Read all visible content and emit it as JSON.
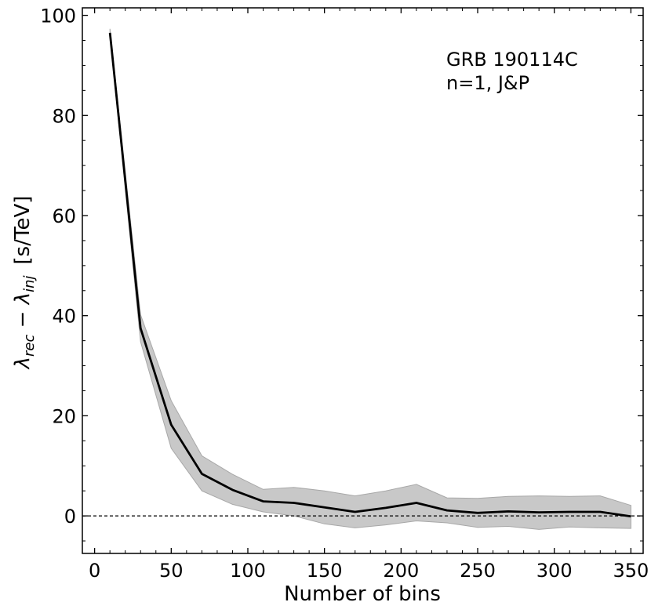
{
  "chart_data": {
    "type": "line",
    "xlabel": "Number of bins",
    "ylabel_main": "λ",
    "ylabel_sub1": "rec",
    "ylabel_minus": " − ",
    "ylabel_sub2": "inj",
    "ylabel_unit": "[s/TeV]",
    "xlim": [
      -8,
      358
    ],
    "ylim": [
      -7.5,
      101.5
    ],
    "xticks": [
      0,
      50,
      100,
      150,
      200,
      250,
      300,
      350
    ],
    "yticks": [
      0,
      20,
      40,
      60,
      80,
      100
    ],
    "xtick_labels": [
      "0",
      "50",
      "100",
      "150",
      "200",
      "250",
      "300",
      "350"
    ],
    "ytick_labels": [
      "0",
      "20",
      "40",
      "60",
      "80",
      "100"
    ],
    "annotation_line1": "GRB 190114C",
    "annotation_line2": "n=1,  J&P",
    "reference_line_y": 0,
    "series": [
      {
        "x": [
          10,
          30,
          50,
          70,
          90,
          110,
          130,
          150,
          170,
          190,
          210,
          230,
          250,
          270,
          290,
          310,
          330,
          350
        ],
        "y": [
          96.5,
          37.5,
          18.2,
          8.4,
          5.2,
          2.9,
          2.6,
          1.7,
          0.8,
          1.6,
          2.6,
          1.1,
          0.6,
          0.9,
          0.7,
          0.8,
          0.8,
          -0.1
        ],
        "upper": [
          97.3,
          40.2,
          23.0,
          12.0,
          8.3,
          5.3,
          5.7,
          5.0,
          4.0,
          5.0,
          6.3,
          3.6,
          3.5,
          3.9,
          4.0,
          3.9,
          4.0,
          2.1
        ],
        "lower": [
          95.8,
          34.8,
          13.5,
          5.0,
          2.3,
          0.8,
          0.0,
          -1.6,
          -2.4,
          -1.8,
          -1.0,
          -1.4,
          -2.3,
          -2.1,
          -2.7,
          -2.2,
          -2.4,
          -2.5
        ],
        "line_color": "#000000",
        "band_color": "#c8c8c8"
      }
    ]
  }
}
